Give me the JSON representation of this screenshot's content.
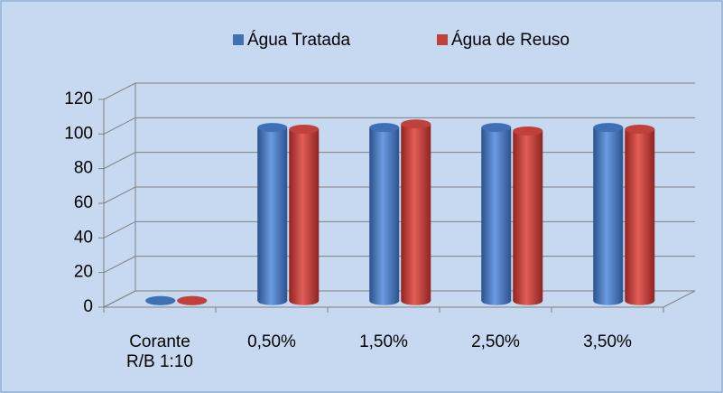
{
  "chart_data": {
    "type": "bar3d",
    "categories": [
      "Corante R/B 1:10",
      "0,50%",
      "1,50%",
      "2,50%",
      "3,50%"
    ],
    "series": [
      {
        "name": "Água Tratada",
        "color": "#3f6fb5",
        "values": [
          0,
          100,
          100,
          100,
          100
        ]
      },
      {
        "name": "Água de Reuso",
        "color": "#c0403b",
        "values": [
          0,
          99,
          102,
          98,
          99
        ]
      }
    ],
    "ylim": [
      0,
      120
    ],
    "yticks": [
      0,
      20,
      40,
      60,
      80,
      100,
      120
    ],
    "grid": true,
    "legend": "top"
  }
}
